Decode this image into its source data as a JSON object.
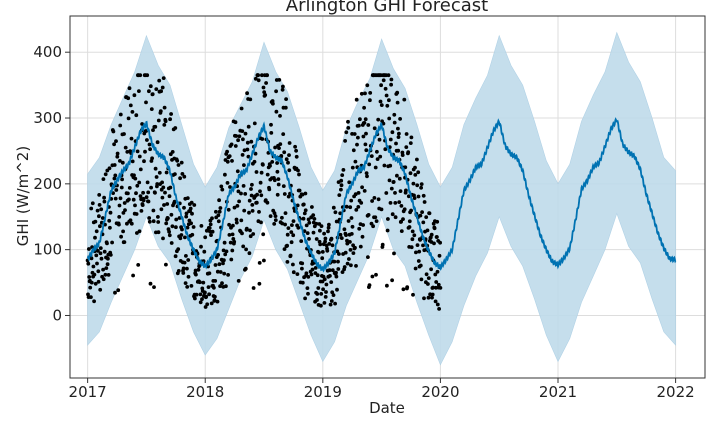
{
  "chart_data": {
    "type": "line",
    "title": "Arlington GHI Forecast",
    "xlabel": "Date",
    "ylabel": "GHI (W/m^2)",
    "xlim": [
      2016.85,
      2022.25
    ],
    "ylim": [
      -95,
      455
    ],
    "x_ticks": [
      2017,
      2018,
      2019,
      2020,
      2021,
      2022
    ],
    "x_tick_labels": [
      "2017",
      "2018",
      "2019",
      "2020",
      "2021",
      "2022"
    ],
    "y_ticks": [
      0,
      100,
      200,
      300,
      400
    ],
    "y_tick_labels": [
      "0",
      "100",
      "200",
      "300",
      "400"
    ],
    "grid": true,
    "colors": {
      "forecast": "#0072B2",
      "uncertainty": "#BFDBEB",
      "observed": "#000000",
      "grid": "#dddddd",
      "frame": "#333333"
    },
    "observed_range": [
      2017.0,
      2020.0
    ],
    "series": [
      {
        "kind": "forecast",
        "x": [
          2017.0,
          2017.05,
          2017.1,
          2017.15,
          2017.2,
          2017.25,
          2017.3,
          2017.35,
          2017.4,
          2017.45,
          2017.5,
          2017.55,
          2017.6,
          2017.65,
          2017.7,
          2017.75,
          2017.8,
          2017.85,
          2017.9,
          2017.95,
          2018.0,
          2018.05,
          2018.1,
          2018.15,
          2018.2,
          2018.25,
          2018.3,
          2018.35,
          2018.4,
          2018.45,
          2018.5,
          2018.55,
          2018.6,
          2018.65,
          2018.7,
          2018.75,
          2018.8,
          2018.85,
          2018.9,
          2018.95,
          2019.0,
          2019.05,
          2019.1,
          2019.15,
          2019.2,
          2019.25,
          2019.3,
          2019.35,
          2019.4,
          2019.45,
          2019.5,
          2019.55,
          2019.6,
          2019.65,
          2019.7,
          2019.75,
          2019.8,
          2019.85,
          2019.9,
          2019.95,
          2020.0,
          2020.05,
          2020.1,
          2020.15,
          2020.2,
          2020.25,
          2020.3,
          2020.35,
          2020.4,
          2020.45,
          2020.5,
          2020.55,
          2020.6,
          2020.65,
          2020.7,
          2020.75,
          2020.8,
          2020.85,
          2020.9,
          2020.95,
          2021.0,
          2021.05,
          2021.1,
          2021.15,
          2021.2,
          2021.25,
          2021.3,
          2021.35,
          2021.4,
          2021.45,
          2021.5,
          2021.55,
          2021.6,
          2021.65,
          2021.7,
          2021.75,
          2021.8,
          2021.85,
          2021.9,
          2021.95,
          2022.0
        ],
        "y": [
          85,
          100,
          110,
          150,
          190,
          205,
          220,
          230,
          255,
          280,
          292,
          260,
          245,
          240,
          220,
          180,
          150,
          120,
          100,
          82,
          75,
          85,
          100,
          140,
          185,
          195,
          215,
          220,
          245,
          270,
          288,
          250,
          240,
          235,
          210,
          175,
          145,
          115,
          95,
          78,
          70,
          80,
          95,
          140,
          185,
          200,
          220,
          225,
          250,
          275,
          290,
          255,
          240,
          235,
          215,
          180,
          150,
          120,
          98,
          80,
          73,
          85,
          100,
          145,
          190,
          205,
          225,
          230,
          255,
          280,
          295,
          258,
          245,
          240,
          220,
          183,
          152,
          122,
          100,
          82,
          77,
          87,
          102,
          146,
          192,
          205,
          226,
          232,
          257,
          283,
          298,
          260,
          248,
          242,
          222,
          185,
          155,
          125,
          102,
          86,
          85
        ]
      },
      {
        "kind": "uncertainty",
        "x": [
          2017.0,
          2017.1,
          2017.2,
          2017.3,
          2017.4,
          2017.5,
          2017.6,
          2017.7,
          2017.8,
          2017.9,
          2018.0,
          2018.1,
          2018.2,
          2018.3,
          2018.4,
          2018.5,
          2018.6,
          2018.7,
          2018.8,
          2018.9,
          2019.0,
          2019.1,
          2019.2,
          2019.3,
          2019.4,
          2019.5,
          2019.6,
          2019.7,
          2019.8,
          2019.9,
          2020.0,
          2020.1,
          2020.2,
          2020.3,
          2020.4,
          2020.5,
          2020.6,
          2020.7,
          2020.8,
          2020.9,
          2021.0,
          2021.1,
          2021.2,
          2021.3,
          2021.4,
          2021.5,
          2021.6,
          2021.7,
          2021.8,
          2021.9,
          2022.0
        ],
        "upper": [
          215,
          240,
          290,
          330,
          370,
          425,
          380,
          350,
          290,
          230,
          195,
          225,
          285,
          320,
          355,
          415,
          370,
          340,
          285,
          225,
          190,
          220,
          285,
          325,
          360,
          420,
          375,
          345,
          290,
          230,
          195,
          225,
          290,
          330,
          365,
          425,
          380,
          350,
          295,
          235,
          200,
          230,
          295,
          335,
          370,
          430,
          385,
          355,
          300,
          240,
          220
        ],
        "lower": [
          -45,
          -25,
          20,
          60,
          100,
          150,
          105,
          80,
          25,
          -25,
          -60,
          -35,
          10,
          55,
          90,
          145,
          100,
          70,
          20,
          -30,
          -70,
          -40,
          15,
          55,
          95,
          150,
          100,
          75,
          20,
          -30,
          -75,
          -40,
          15,
          60,
          95,
          150,
          105,
          75,
          25,
          -30,
          -70,
          -35,
          20,
          60,
          100,
          155,
          105,
          80,
          25,
          -25,
          -45
        ]
      }
    ]
  }
}
